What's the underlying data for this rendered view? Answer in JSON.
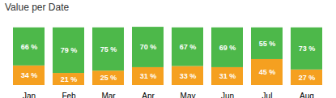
{
  "chart_data": {
    "type": "bar",
    "title": "Value per Date",
    "stacked": true,
    "categories": [
      "Jan",
      "Feb",
      "Mar",
      "Apr",
      "May",
      "Jun",
      "Jul",
      "Aug"
    ],
    "series": [
      {
        "color": "#f5a020",
        "values": [
          34,
          21,
          25,
          31,
          33,
          31,
          45,
          27
        ],
        "value_labels": [
          "34 %",
          "21 %",
          "25 %",
          "31 %",
          "33 %",
          "31 %",
          "45 %",
          "27 %"
        ]
      },
      {
        "color": "#4db84a",
        "values": [
          66,
          79,
          75,
          70,
          67,
          69,
          55,
          73
        ],
        "value_labels": [
          "66 %",
          "79 %",
          "75 %",
          "70 %",
          "67 %",
          "69 %",
          "55 %",
          "73 %"
        ]
      }
    ],
    "ylim": [
      0,
      118
    ],
    "data_labels": true,
    "tick_labels": "x",
    "grid": false
  }
}
